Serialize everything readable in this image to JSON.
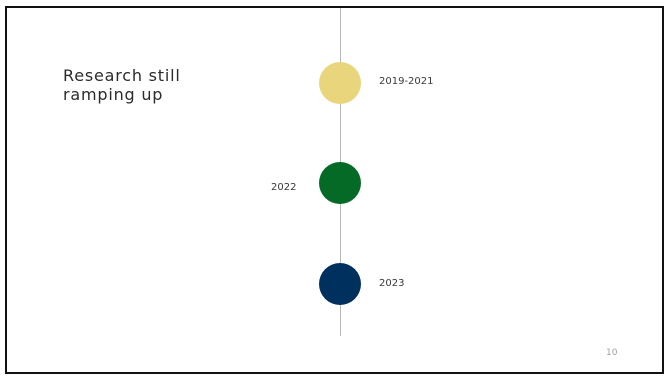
{
  "slide": {
    "title": "Research still ramping up",
    "page_number": "10"
  },
  "timeline": {
    "milestones": [
      {
        "label": "2019-2021",
        "color": "#E8D57C"
      },
      {
        "label": "2022",
        "color": "#046A25"
      },
      {
        "label": "2023",
        "color": "#00305E"
      }
    ]
  }
}
